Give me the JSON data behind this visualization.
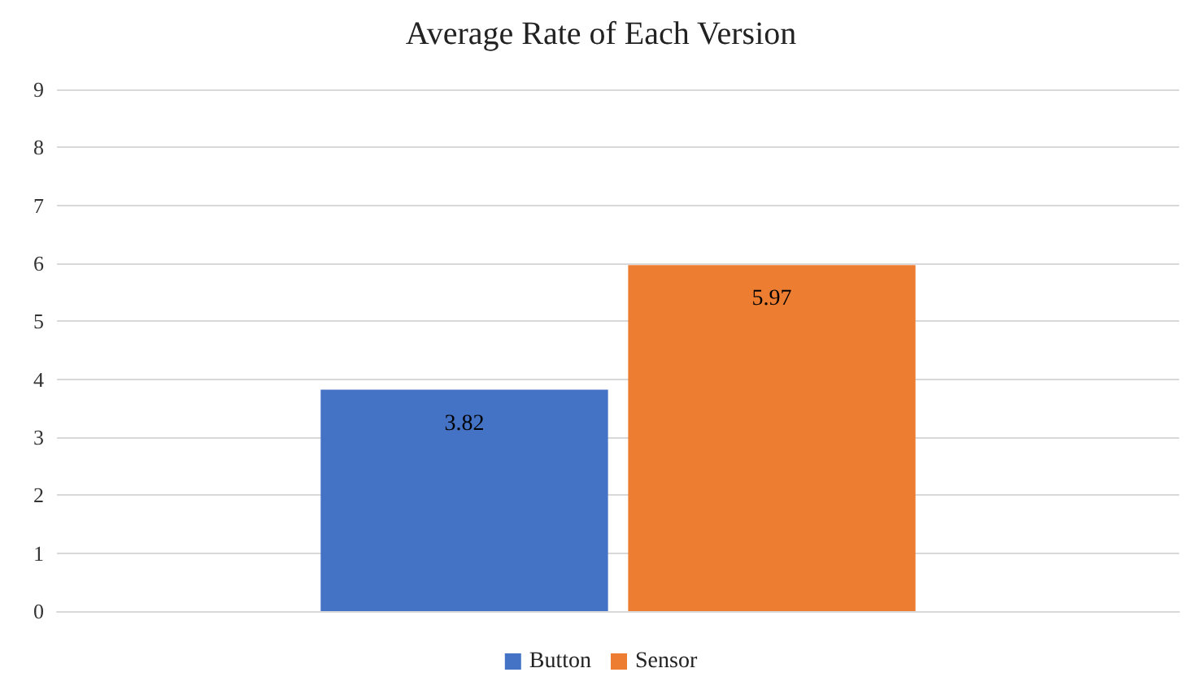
{
  "chart_data": {
    "type": "bar",
    "title": "Average Rate of Each Version",
    "categories": [
      null
    ],
    "series": [
      {
        "name": "Button",
        "color": "#4472c4",
        "values": [
          3.82
        ]
      },
      {
        "name": "Sensor",
        "color": "#ed7d31",
        "values": [
          5.97
        ]
      }
    ],
    "ylim": [
      0,
      9
    ],
    "yticks": [
      0,
      1,
      2,
      3,
      4,
      5,
      6,
      7,
      8,
      9
    ],
    "grid": "y",
    "legend": "bottom",
    "data_labels": true
  }
}
